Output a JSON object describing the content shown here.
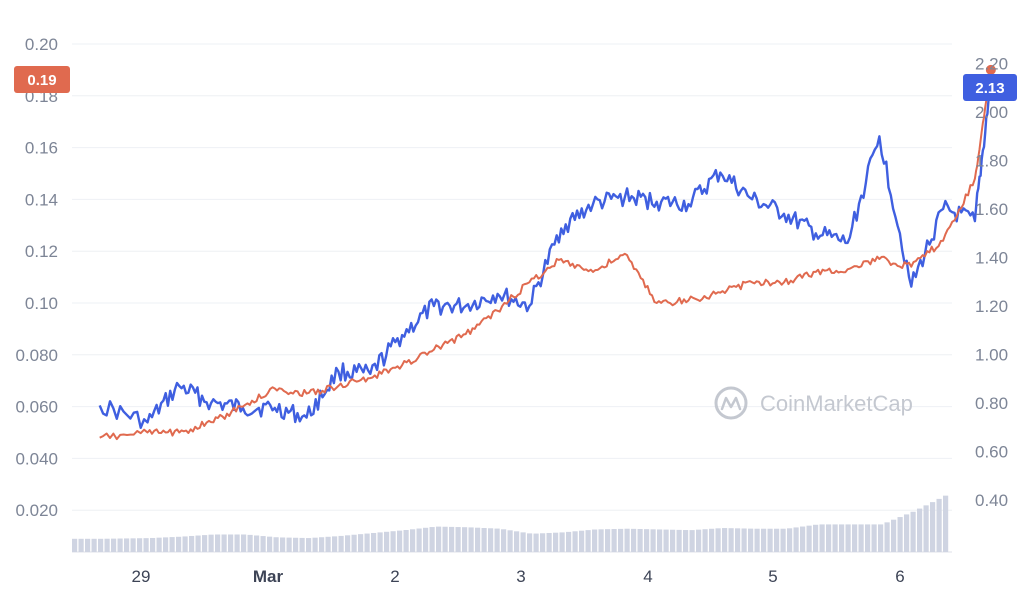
{
  "chart_data": {
    "type": "line",
    "title": "",
    "watermark": "CoinMarketCap",
    "grid": "horizontal",
    "x_ticks": [
      "29",
      "Mar",
      "2",
      "3",
      "4",
      "5",
      "6"
    ],
    "x_axis_start": "Feb 28",
    "x_axis_end": "Mar 6",
    "y_left": {
      "ticks": [
        "0.020",
        "0.040",
        "0.060",
        "0.080",
        "0.10",
        "0.12",
        "0.14",
        "0.16",
        "0.18",
        "0.20"
      ],
      "range": [
        0.0,
        0.205
      ]
    },
    "y_right": {
      "ticks": [
        "0.40",
        "0.60",
        "0.80",
        "1.00",
        "1.20",
        "1.40",
        "1.60",
        "1.80",
        "2.00",
        "2.20"
      ],
      "range": [
        0.2,
        2.25
      ]
    },
    "badges": {
      "left": "0.19",
      "right": "2.13"
    },
    "colors": {
      "blue": "#3f5fe0",
      "orange": "#e06a4f",
      "volume": "#cfd4e2",
      "grid": "#eef0f4"
    },
    "series": [
      {
        "color": "#3f5fe0",
        "axis": "right",
        "x": [
          "Feb 28 09:00",
          "Feb 28 18:00",
          "Feb 29 00:00",
          "Feb 29 06:00",
          "Feb 29 12:00",
          "Feb 29 18:00",
          "Mar 1 00:00",
          "Mar 1 06:00",
          "Mar 1 12:00",
          "Mar 1 18:00",
          "Mar 2 00:00",
          "Mar 2 06:00",
          "Mar 2 12:00",
          "Mar 2 18:00",
          "Mar 3 00:00",
          "Mar 3 06:00",
          "Mar 3 12:00",
          "Mar 3 18:00",
          "Mar 4 00:00",
          "Mar 4 06:00",
          "Mar 4 12:00",
          "Mar 4 18:00",
          "Mar 5 00:00",
          "Mar 5 06:00",
          "Mar 5 12:00",
          "Mar 5 18:00",
          "Mar 6 00:00",
          "Mar 6 06:00",
          "Mar 6 09:00"
        ],
        "y": [
          0.79,
          0.72,
          0.87,
          0.8,
          0.78,
          0.78,
          0.74,
          0.93,
          0.92,
          1.08,
          1.2,
          1.2,
          1.25,
          1.2,
          1.52,
          1.62,
          1.65,
          1.63,
          1.62,
          1.75,
          1.64,
          1.58,
          1.5,
          1.46,
          1.9,
          1.28,
          1.6,
          1.55,
          2.13
        ]
      },
      {
        "color": "#e06a4f",
        "axis": "left",
        "x": [
          "Feb 28 09:00",
          "Feb 28 18:00",
          "Feb 29 00:00",
          "Feb 29 06:00",
          "Feb 29 12:00",
          "Feb 29 18:00",
          "Mar 1 00:00",
          "Mar 1 06:00",
          "Mar 1 12:00",
          "Mar 1 18:00",
          "Mar 2 00:00",
          "Mar 2 06:00",
          "Mar 2 12:00",
          "Mar 2 18:00",
          "Mar 3 00:00",
          "Mar 3 06:00",
          "Mar 3 12:00",
          "Mar 3 18:00",
          "Mar 4 00:00",
          "Mar 4 06:00",
          "Mar 4 12:00",
          "Mar 4 18:00",
          "Mar 5 00:00",
          "Mar 5 06:00",
          "Mar 5 12:00",
          "Mar 5 18:00",
          "Mar 6 00:00",
          "Mar 6 06:00",
          "Mar 6 09:00"
        ],
        "y": [
          0.048,
          0.05,
          0.05,
          0.054,
          0.06,
          0.067,
          0.065,
          0.068,
          0.071,
          0.076,
          0.082,
          0.088,
          0.097,
          0.108,
          0.117,
          0.112,
          0.119,
          0.1,
          0.101,
          0.104,
          0.108,
          0.108,
          0.112,
          0.113,
          0.117,
          0.114,
          0.124,
          0.148,
          0.19
        ]
      }
    ],
    "volume": {
      "x": [
        "Feb 28 09:00",
        "Feb 28 18:00",
        "Feb 29 00:00",
        "Feb 29 06:00",
        "Feb 29 12:00",
        "Feb 29 18:00",
        "Mar 1 00:00",
        "Mar 1 06:00",
        "Mar 1 12:00",
        "Mar 1 18:00",
        "Mar 2 00:00",
        "Mar 2 06:00",
        "Mar 2 12:00",
        "Mar 2 18:00",
        "Mar 3 00:00",
        "Mar 3 06:00",
        "Mar 3 12:00",
        "Mar 3 18:00",
        "Mar 4 00:00",
        "Mar 4 06:00",
        "Mar 4 12:00",
        "Mar 4 18:00",
        "Mar 5 00:00",
        "Mar 5 06:00",
        "Mar 5 12:00",
        "Mar 5 18:00",
        "Mar 6 00:00",
        "Mar 6 06:00",
        "Mar 6 09:00"
      ],
      "relative": [
        0.1,
        0.11,
        0.13,
        0.16,
        0.16,
        0.12,
        0.11,
        0.14,
        0.18,
        0.22,
        0.27,
        0.26,
        0.24,
        0.17,
        0.19,
        0.23,
        0.24,
        0.23,
        0.22,
        0.25,
        0.24,
        0.24,
        0.3,
        0.3,
        0.3,
        0.48,
        0.7,
        0.75,
        1.0
      ]
    }
  }
}
